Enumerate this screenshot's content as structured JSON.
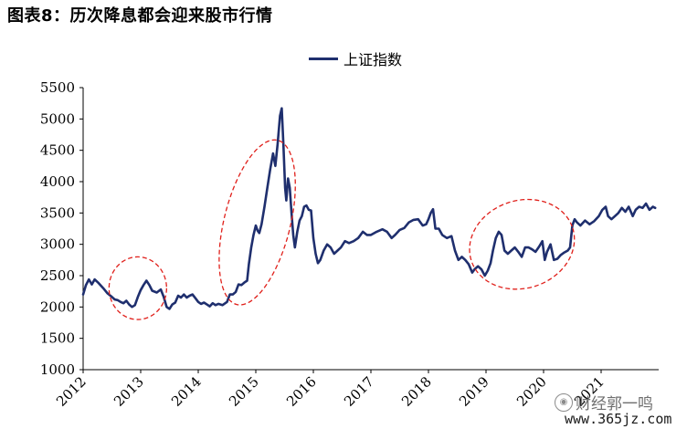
{
  "title": "图表8：历次降息都会迎来股市行情",
  "watermark": {
    "text": "财经郭一鸣",
    "site": "www.365jz.com",
    "icon": "camera-icon"
  },
  "chart_data": {
    "type": "line",
    "series": [
      {
        "name": "上证指数",
        "color": "#1f2f6e",
        "points": [
          [
            2012.0,
            2200
          ],
          [
            2012.05,
            2350
          ],
          [
            2012.1,
            2440
          ],
          [
            2012.15,
            2360
          ],
          [
            2012.2,
            2440
          ],
          [
            2012.27,
            2380
          ],
          [
            2012.35,
            2300
          ],
          [
            2012.42,
            2220
          ],
          [
            2012.5,
            2160
          ],
          [
            2012.55,
            2120
          ],
          [
            2012.6,
            2110
          ],
          [
            2012.65,
            2080
          ],
          [
            2012.7,
            2060
          ],
          [
            2012.75,
            2100
          ],
          [
            2012.8,
            2040
          ],
          [
            2012.85,
            2000
          ],
          [
            2012.9,
            2030
          ],
          [
            2012.95,
            2160
          ],
          [
            2013.0,
            2270
          ],
          [
            2013.05,
            2350
          ],
          [
            2013.1,
            2420
          ],
          [
            2013.15,
            2350
          ],
          [
            2013.2,
            2260
          ],
          [
            2013.28,
            2230
          ],
          [
            2013.35,
            2280
          ],
          [
            2013.4,
            2160
          ],
          [
            2013.45,
            2000
          ],
          [
            2013.5,
            1970
          ],
          [
            2013.55,
            2040
          ],
          [
            2013.6,
            2070
          ],
          [
            2013.65,
            2180
          ],
          [
            2013.7,
            2150
          ],
          [
            2013.75,
            2200
          ],
          [
            2013.8,
            2150
          ],
          [
            2013.85,
            2180
          ],
          [
            2013.9,
            2200
          ],
          [
            2013.95,
            2140
          ],
          [
            2014.0,
            2080
          ],
          [
            2014.05,
            2050
          ],
          [
            2014.1,
            2070
          ],
          [
            2014.15,
            2040
          ],
          [
            2014.2,
            2010
          ],
          [
            2014.25,
            2060
          ],
          [
            2014.3,
            2030
          ],
          [
            2014.35,
            2050
          ],
          [
            2014.42,
            2030
          ],
          [
            2014.5,
            2080
          ],
          [
            2014.55,
            2200
          ],
          [
            2014.6,
            2200
          ],
          [
            2014.65,
            2240
          ],
          [
            2014.7,
            2360
          ],
          [
            2014.75,
            2350
          ],
          [
            2014.8,
            2390
          ],
          [
            2014.85,
            2420
          ],
          [
            2014.88,
            2680
          ],
          [
            2014.92,
            2950
          ],
          [
            2014.96,
            3150
          ],
          [
            2015.0,
            3300
          ],
          [
            2015.03,
            3220
          ],
          [
            2015.06,
            3180
          ],
          [
            2015.1,
            3320
          ],
          [
            2015.15,
            3600
          ],
          [
            2015.2,
            3900
          ],
          [
            2015.25,
            4200
          ],
          [
            2015.3,
            4450
          ],
          [
            2015.34,
            4250
          ],
          [
            2015.38,
            4600
          ],
          [
            2015.42,
            5050
          ],
          [
            2015.45,
            5170
          ],
          [
            2015.48,
            4600
          ],
          [
            2015.51,
            3900
          ],
          [
            2015.53,
            3700
          ],
          [
            2015.56,
            4050
          ],
          [
            2015.59,
            3900
          ],
          [
            2015.62,
            3500
          ],
          [
            2015.65,
            3150
          ],
          [
            2015.68,
            2950
          ],
          [
            2015.72,
            3200
          ],
          [
            2015.76,
            3380
          ],
          [
            2015.8,
            3450
          ],
          [
            2015.84,
            3600
          ],
          [
            2015.88,
            3620
          ],
          [
            2015.92,
            3550
          ],
          [
            2015.96,
            3540
          ],
          [
            2016.0,
            3100
          ],
          [
            2016.04,
            2850
          ],
          [
            2016.08,
            2700
          ],
          [
            2016.12,
            2750
          ],
          [
            2016.18,
            2900
          ],
          [
            2016.24,
            3000
          ],
          [
            2016.3,
            2950
          ],
          [
            2016.36,
            2850
          ],
          [
            2016.42,
            2900
          ],
          [
            2016.48,
            2950
          ],
          [
            2016.55,
            3050
          ],
          [
            2016.62,
            3020
          ],
          [
            2016.7,
            3050
          ],
          [
            2016.78,
            3100
          ],
          [
            2016.86,
            3200
          ],
          [
            2016.93,
            3150
          ],
          [
            2017.0,
            3150
          ],
          [
            2017.1,
            3200
          ],
          [
            2017.2,
            3240
          ],
          [
            2017.28,
            3200
          ],
          [
            2017.36,
            3100
          ],
          [
            2017.42,
            3150
          ],
          [
            2017.5,
            3230
          ],
          [
            2017.58,
            3260
          ],
          [
            2017.66,
            3350
          ],
          [
            2017.74,
            3390
          ],
          [
            2017.82,
            3400
          ],
          [
            2017.9,
            3300
          ],
          [
            2017.96,
            3320
          ],
          [
            2018.0,
            3400
          ],
          [
            2018.04,
            3500
          ],
          [
            2018.08,
            3560
          ],
          [
            2018.12,
            3250
          ],
          [
            2018.18,
            3250
          ],
          [
            2018.24,
            3150
          ],
          [
            2018.32,
            3100
          ],
          [
            2018.4,
            3130
          ],
          [
            2018.46,
            2900
          ],
          [
            2018.52,
            2750
          ],
          [
            2018.58,
            2800
          ],
          [
            2018.64,
            2750
          ],
          [
            2018.7,
            2680
          ],
          [
            2018.76,
            2550
          ],
          [
            2018.8,
            2600
          ],
          [
            2018.86,
            2650
          ],
          [
            2018.92,
            2600
          ],
          [
            2018.98,
            2500
          ],
          [
            2019.03,
            2580
          ],
          [
            2019.08,
            2700
          ],
          [
            2019.12,
            2900
          ],
          [
            2019.17,
            3100
          ],
          [
            2019.22,
            3200
          ],
          [
            2019.27,
            3150
          ],
          [
            2019.32,
            2900
          ],
          [
            2019.38,
            2850
          ],
          [
            2019.44,
            2900
          ],
          [
            2019.5,
            2950
          ],
          [
            2019.56,
            2880
          ],
          [
            2019.62,
            2800
          ],
          [
            2019.68,
            2950
          ],
          [
            2019.74,
            2950
          ],
          [
            2019.8,
            2920
          ],
          [
            2019.86,
            2880
          ],
          [
            2019.92,
            2960
          ],
          [
            2019.98,
            3050
          ],
          [
            2020.02,
            2750
          ],
          [
            2020.06,
            2880
          ],
          [
            2020.12,
            3000
          ],
          [
            2020.18,
            2750
          ],
          [
            2020.24,
            2770
          ],
          [
            2020.3,
            2830
          ],
          [
            2020.36,
            2870
          ],
          [
            2020.42,
            2900
          ],
          [
            2020.46,
            2950
          ],
          [
            2020.5,
            3300
          ],
          [
            2020.54,
            3400
          ],
          [
            2020.58,
            3350
          ],
          [
            2020.64,
            3300
          ],
          [
            2020.72,
            3380
          ],
          [
            2020.8,
            3320
          ],
          [
            2020.88,
            3370
          ],
          [
            2020.96,
            3450
          ],
          [
            2021.02,
            3550
          ],
          [
            2021.08,
            3600
          ],
          [
            2021.12,
            3450
          ],
          [
            2021.18,
            3400
          ],
          [
            2021.24,
            3450
          ],
          [
            2021.3,
            3500
          ],
          [
            2021.36,
            3580
          ],
          [
            2021.42,
            3520
          ],
          [
            2021.48,
            3600
          ],
          [
            2021.55,
            3450
          ],
          [
            2021.6,
            3550
          ],
          [
            2021.66,
            3600
          ],
          [
            2021.72,
            3580
          ],
          [
            2021.78,
            3650
          ],
          [
            2021.84,
            3550
          ],
          [
            2021.9,
            3600
          ],
          [
            2021.94,
            3580
          ]
        ]
      }
    ],
    "xlabel": "",
    "ylabel": "",
    "xlim": [
      2012,
      2022
    ],
    "ylim": [
      1000,
      5500
    ],
    "x_ticks": [
      "2012",
      "2013",
      "2014",
      "2015",
      "2016",
      "2017",
      "2018",
      "2019",
      "2020",
      "2021"
    ],
    "y_ticks": [
      "1000",
      "1500",
      "2000",
      "2500",
      "3000",
      "3500",
      "4000",
      "4500",
      "5000",
      "5500"
    ],
    "grid": false,
    "legend": "top-center",
    "annotations": [
      {
        "type": "dashed-ellipse",
        "color": "#e0201b",
        "x_range": [
          2012.45,
          2013.45
        ],
        "y_range": [
          1800,
          2800
        ]
      },
      {
        "type": "dashed-ellipse",
        "color": "#e0201b",
        "x_range": [
          2014.45,
          2015.6
        ],
        "y_range": [
          2000,
          4700
        ]
      },
      {
        "type": "dashed-ellipse",
        "color": "#e0201b",
        "x_range": [
          2018.7,
          2020.55
        ],
        "y_range": [
          2300,
          3700
        ]
      }
    ]
  }
}
